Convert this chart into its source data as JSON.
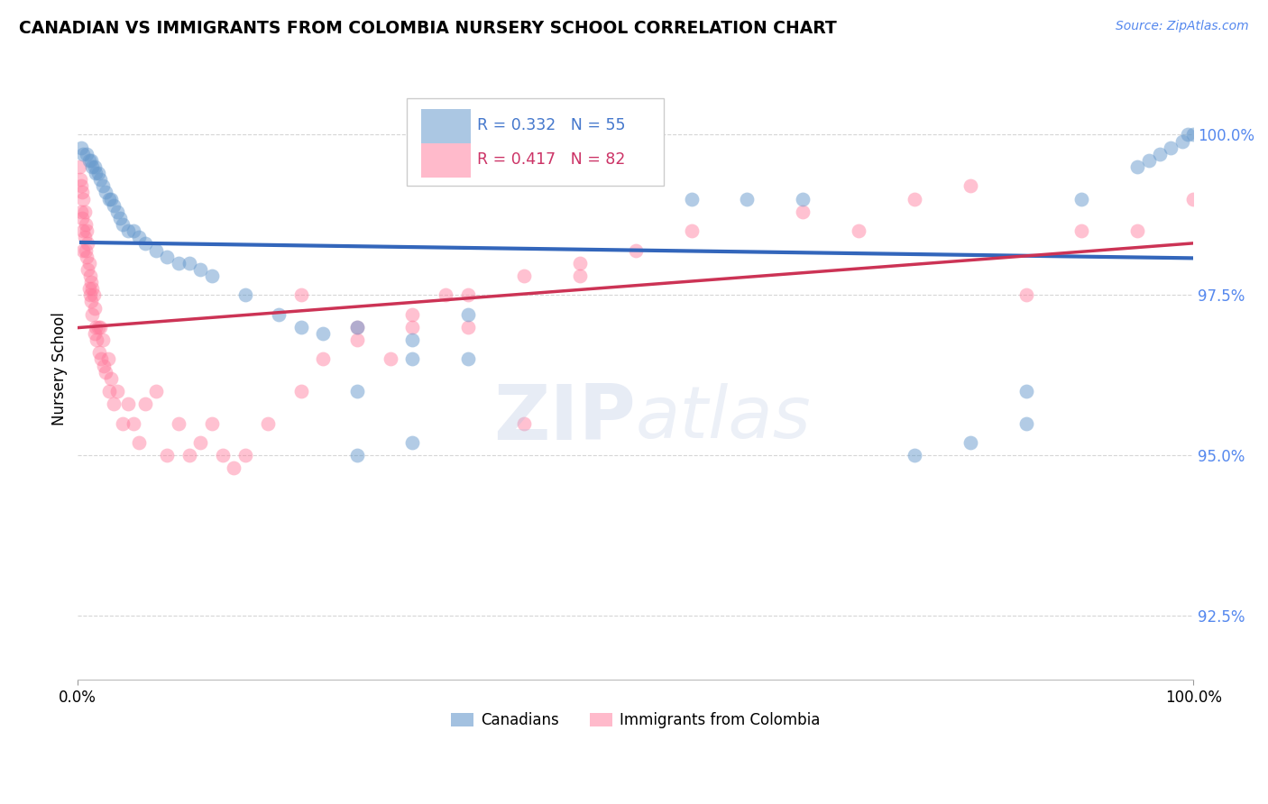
{
  "title": "CANADIAN VS IMMIGRANTS FROM COLOMBIA NURSERY SCHOOL CORRELATION CHART",
  "source_text": "Source: ZipAtlas.com",
  "ylabel": "Nursery School",
  "watermark_zip": "ZIP",
  "watermark_atlas": "atlas",
  "xmin": 0.0,
  "xmax": 100.0,
  "ymin": 91.5,
  "ymax": 101.2,
  "yticks": [
    92.5,
    95.0,
    97.5,
    100.0
  ],
  "ytick_labels": [
    "92.5%",
    "95.0%",
    "97.5%",
    "100.0%"
  ],
  "canadian_R": 0.332,
  "canadian_N": 55,
  "colombia_R": 0.417,
  "colombia_N": 82,
  "canadian_color": "#6699CC",
  "colombia_color": "#FF7799",
  "canadian_line_color": "#3366BB",
  "colombia_line_color": "#CC3355",
  "canadian_x": [
    0.3,
    0.5,
    0.8,
    1.0,
    1.2,
    1.3,
    1.5,
    1.6,
    1.8,
    2.0,
    2.2,
    2.5,
    2.8,
    3.0,
    3.2,
    3.5,
    3.8,
    4.0,
    4.5,
    5.0,
    5.5,
    6.0,
    7.0,
    8.0,
    9.0,
    10.0,
    11.0,
    12.0,
    15.0,
    18.0,
    20.0,
    22.0,
    25.0,
    30.0,
    35.0,
    25.0,
    30.0,
    35.0,
    25.0,
    30.0,
    55.0,
    60.0,
    65.0,
    75.0,
    80.0,
    85.0,
    90.0,
    95.0,
    96.0,
    97.0,
    98.0,
    99.0,
    99.5,
    100.0,
    85.0
  ],
  "canadian_y": [
    99.8,
    99.7,
    99.7,
    99.6,
    99.6,
    99.5,
    99.5,
    99.4,
    99.4,
    99.3,
    99.2,
    99.1,
    99.0,
    99.0,
    98.9,
    98.8,
    98.7,
    98.6,
    98.5,
    98.5,
    98.4,
    98.3,
    98.2,
    98.1,
    98.0,
    98.0,
    97.9,
    97.8,
    97.5,
    97.2,
    97.0,
    96.9,
    97.0,
    96.8,
    97.2,
    95.0,
    95.2,
    96.5,
    96.0,
    96.5,
    99.0,
    99.0,
    99.0,
    95.0,
    95.2,
    95.5,
    99.0,
    99.5,
    99.6,
    99.7,
    99.8,
    99.9,
    100.0,
    100.0,
    96.0
  ],
  "colombia_x": [
    0.1,
    0.2,
    0.3,
    0.3,
    0.4,
    0.4,
    0.5,
    0.5,
    0.5,
    0.6,
    0.6,
    0.7,
    0.7,
    0.8,
    0.8,
    0.9,
    0.9,
    1.0,
    1.0,
    1.1,
    1.1,
    1.2,
    1.2,
    1.3,
    1.3,
    1.4,
    1.5,
    1.5,
    1.6,
    1.7,
    1.8,
    1.9,
    2.0,
    2.1,
    2.2,
    2.3,
    2.5,
    2.7,
    2.8,
    3.0,
    3.2,
    3.5,
    4.0,
    4.5,
    5.0,
    5.5,
    6.0,
    7.0,
    8.0,
    9.0,
    10.0,
    11.0,
    12.0,
    13.0,
    14.0,
    15.0,
    17.0,
    20.0,
    22.0,
    25.0,
    28.0,
    30.0,
    33.0,
    35.0,
    40.0,
    45.0,
    50.0,
    55.0,
    65.0,
    70.0,
    75.0,
    80.0,
    85.0,
    90.0,
    95.0,
    100.0,
    20.0,
    25.0,
    30.0,
    35.0,
    40.0,
    45.0
  ],
  "colombia_y": [
    99.5,
    99.3,
    99.2,
    98.8,
    99.1,
    98.7,
    99.0,
    98.5,
    98.2,
    98.8,
    98.4,
    98.6,
    98.2,
    98.5,
    98.1,
    98.3,
    97.9,
    98.0,
    97.6,
    97.8,
    97.5,
    97.7,
    97.4,
    97.6,
    97.2,
    97.5,
    97.3,
    96.9,
    97.0,
    96.8,
    97.0,
    96.6,
    97.0,
    96.5,
    96.8,
    96.4,
    96.3,
    96.5,
    96.0,
    96.2,
    95.8,
    96.0,
    95.5,
    95.8,
    95.5,
    95.2,
    95.8,
    96.0,
    95.0,
    95.5,
    95.0,
    95.2,
    95.5,
    95.0,
    94.8,
    95.0,
    95.5,
    96.0,
    96.5,
    97.0,
    96.5,
    97.0,
    97.5,
    97.5,
    97.8,
    98.0,
    98.2,
    98.5,
    98.8,
    98.5,
    99.0,
    99.2,
    97.5,
    98.5,
    98.5,
    99.0,
    97.5,
    96.8,
    97.2,
    97.0,
    95.5,
    97.8
  ]
}
